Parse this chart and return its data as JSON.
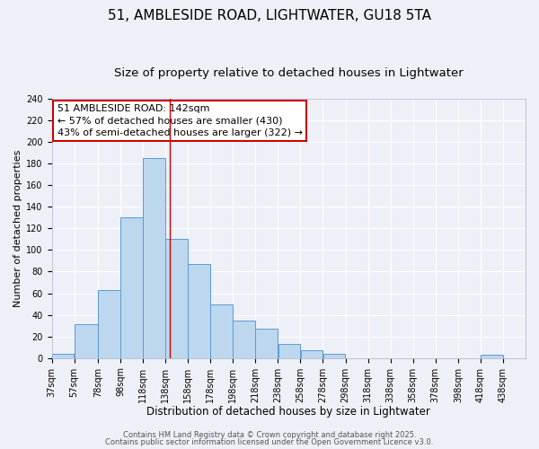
{
  "title": "51, AMBLESIDE ROAD, LIGHTWATER, GU18 5TA",
  "subtitle": "Size of property relative to detached houses in Lightwater",
  "xlabel": "Distribution of detached houses by size in Lightwater",
  "ylabel": "Number of detached properties",
  "bar_left_edges": [
    37,
    57,
    78,
    98,
    118,
    138,
    158,
    178,
    198,
    218,
    238,
    258,
    278,
    298,
    318,
    338,
    358,
    378,
    398,
    418
  ],
  "bar_widths": [
    20,
    21,
    20,
    20,
    20,
    20,
    20,
    20,
    20,
    20,
    20,
    20,
    20,
    20,
    20,
    20,
    20,
    20,
    20,
    20
  ],
  "bar_heights": [
    4,
    31,
    63,
    130,
    185,
    110,
    87,
    50,
    35,
    27,
    13,
    7,
    4,
    0,
    0,
    0,
    0,
    0,
    0,
    3
  ],
  "tick_labels": [
    "37sqm",
    "57sqm",
    "78sqm",
    "98sqm",
    "118sqm",
    "138sqm",
    "158sqm",
    "178sqm",
    "198sqm",
    "218sqm",
    "238sqm",
    "258sqm",
    "278sqm",
    "298sqm",
    "318sqm",
    "338sqm",
    "358sqm",
    "378sqm",
    "398sqm",
    "418sqm",
    "438sqm"
  ],
  "tick_positions": [
    37,
    57,
    78,
    98,
    118,
    138,
    158,
    178,
    198,
    218,
    238,
    258,
    278,
    298,
    318,
    338,
    358,
    378,
    398,
    418,
    438
  ],
  "bar_color": "#bdd7ee",
  "bar_edge_color": "#5b9bd5",
  "vline_x": 142,
  "vline_color": "#cc0000",
  "annotation_line1": "51 AMBLESIDE ROAD: 142sqm",
  "annotation_line2": "← 57% of detached houses are smaller (430)",
  "annotation_line3": "43% of semi-detached houses are larger (322) →",
  "annotation_box_color": "#cc0000",
  "xlim_left": 37,
  "xlim_right": 458,
  "ylim": [
    0,
    240
  ],
  "yticks": [
    0,
    20,
    40,
    60,
    80,
    100,
    120,
    140,
    160,
    180,
    200,
    220,
    240
  ],
  "bg_color": "#eef0f8",
  "grid_color": "#ffffff",
  "footer1": "Contains HM Land Registry data © Crown copyright and database right 2025.",
  "footer2": "Contains public sector information licensed under the Open Government Licence v3.0.",
  "title_fontsize": 11,
  "subtitle_fontsize": 9.5,
  "xlabel_fontsize": 8.5,
  "ylabel_fontsize": 8,
  "tick_fontsize": 7,
  "annotation_fontsize": 8,
  "footer_fontsize": 6
}
